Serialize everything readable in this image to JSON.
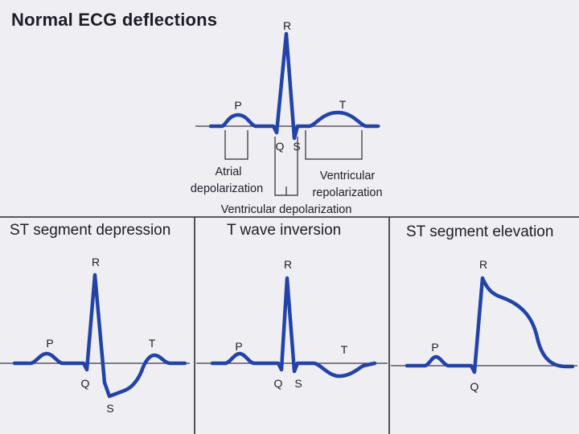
{
  "title": "Normal ECG deflections",
  "normal": {
    "labels": {
      "p": "P",
      "q": "Q",
      "r": "R",
      "s": "S",
      "t": "T"
    },
    "annotations": {
      "atrial_line1": "Atrial",
      "atrial_line2": "depolarization",
      "ventricular_repol_line1": "Ventricular",
      "ventricular_repol_line2": "repolarization",
      "ventricular_depol": "Ventricular depolarization"
    }
  },
  "panels": [
    {
      "title": "ST segment depression",
      "labels": {
        "p": "P",
        "q": "Q",
        "r": "R",
        "s": "S",
        "t": "T"
      }
    },
    {
      "title": "T wave inversion",
      "labels": {
        "p": "P",
        "q": "Q",
        "r": "R",
        "s": "S",
        "t": "T"
      }
    },
    {
      "title": "ST segment elevation",
      "labels": {
        "p": "P",
        "q": "Q",
        "r": "R"
      }
    }
  ],
  "colors": {
    "trace": "#2243a8",
    "ink": "#1d1d28",
    "background": "#efeef3"
  }
}
